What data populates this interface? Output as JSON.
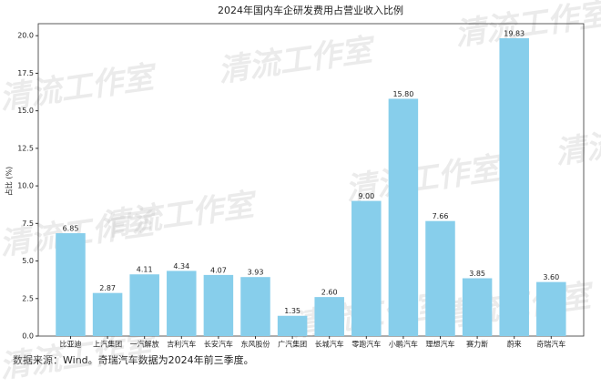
{
  "chart_data": {
    "type": "bar",
    "title": "2024年国内车企研发费用占营业收入比例",
    "ylabel": "占比 (%)",
    "note": "数据来源：Wind。奇瑞汽车数据为2024年前三季度。",
    "watermark": "清流工作室",
    "categories": [
      "比亚迪",
      "上汽集团",
      "一汽解放",
      "吉利汽车",
      "长安汽车",
      "东风股份",
      "广汽集团",
      "长城汽车",
      "零跑汽车",
      "小鹏汽车",
      "理想汽车",
      "赛力斯",
      "蔚来",
      "奇瑞汽车"
    ],
    "values": [
      6.85,
      2.87,
      4.11,
      4.34,
      4.07,
      3.93,
      1.35,
      2.6,
      9.0,
      15.8,
      7.66,
      3.85,
      19.83,
      3.6
    ],
    "value_labels": [
      "6.85",
      "2.87",
      "4.11",
      "4.34",
      "4.07",
      "3.93",
      "1.35",
      "2.60",
      "9.00",
      "15.80",
      "7.66",
      "3.85",
      "19.83",
      "3.60"
    ],
    "color": "#87ceeb",
    "ylim": [
      0,
      20.8
    ],
    "yticks": [
      {
        "value": 0,
        "label": "0.0"
      },
      2.5,
      {
        "value": 5,
        "label": "5.0"
      },
      7.5,
      {
        "value": 10,
        "label": "10.0"
      },
      12.5,
      {
        "value": 15,
        "label": "15.0"
      },
      17.5,
      {
        "value": 20,
        "label": "20.0"
      }
    ],
    "grid": false
  }
}
